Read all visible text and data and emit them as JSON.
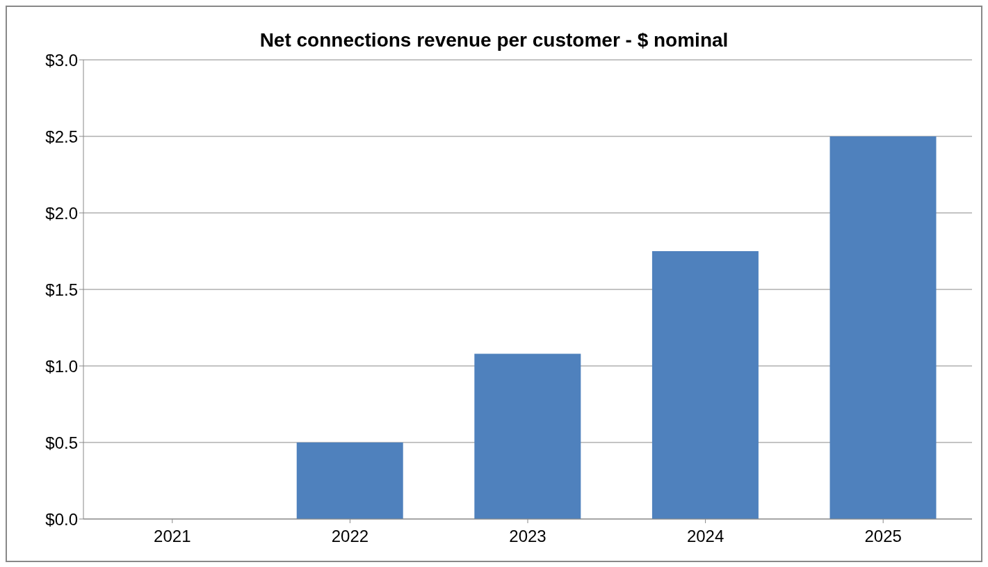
{
  "chart_data": {
    "type": "bar",
    "title": "Net connections revenue per customer - $ nominal",
    "categories": [
      "2021",
      "2022",
      "2023",
      "2024",
      "2025"
    ],
    "values": [
      0,
      0.5,
      1.08,
      1.75,
      2.5
    ],
    "color": "#4f81bd",
    "ylim": [
      0,
      3
    ],
    "yticks": [
      {
        "value": 0,
        "label": "$0.0"
      },
      {
        "value": 0.5,
        "label": "$0.5"
      },
      {
        "value": 1,
        "label": "$1.0"
      },
      {
        "value": 1.5,
        "label": "$1.5"
      },
      {
        "value": 2,
        "label": "$2.0"
      },
      {
        "value": 2.5,
        "label": "$2.5"
      },
      {
        "value": 3,
        "label": "$3.0"
      }
    ],
    "grid": "y",
    "legend": false
  }
}
